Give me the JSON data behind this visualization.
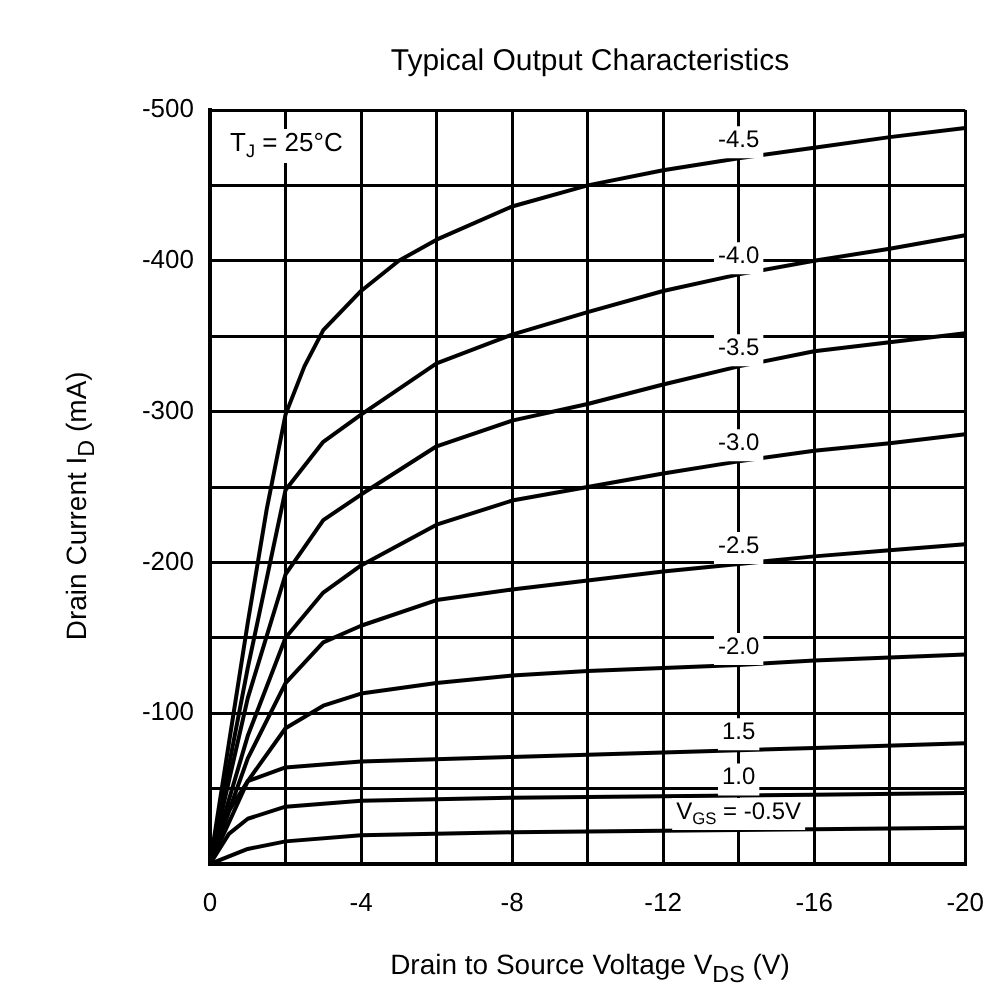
{
  "chart_data": {
    "type": "line",
    "title": "Typical Output Characteristics",
    "xlabel": "Drain to Source Voltage V$_{DS}$ (V)",
    "ylabel": "Drain Current I$_{D}$ (mA)",
    "annotations": [
      "T$_{J}$ = 25°C"
    ],
    "xlim": [
      0,
      -20
    ],
    "xticks": [
      0,
      {
        "value": -2,
        "label": null
      },
      -4,
      {
        "value": -6,
        "label": null
      },
      -8,
      {
        "value": -10,
        "label": null
      },
      -12,
      {
        "value": -14,
        "label": null
      },
      -16,
      {
        "value": -18,
        "label": null
      },
      -20
    ],
    "ylim": [
      0,
      -500
    ],
    "yticks": [
      {
        "value": 0,
        "label": null
      },
      {
        "value": -50,
        "label": null
      },
      -100,
      {
        "value": -150,
        "label": null
      },
      -200,
      {
        "value": -250,
        "label": null
      },
      -300,
      {
        "value": -350,
        "label": null
      },
      -400,
      {
        "value": -450,
        "label": null
      },
      -500
    ],
    "grid": true,
    "legend": false,
    "marker": "none",
    "line_style": "solid",
    "series": [
      {
        "name": "-4.5",
        "color": "#000000",
        "x": [
          0,
          -0.5,
          -1,
          -1.5,
          -2,
          -2.5,
          -3,
          -4,
          -5,
          -6,
          -8,
          -10,
          -12,
          -14,
          -16,
          -18,
          -20
        ],
        "values": [
          0,
          -80,
          -160,
          -235,
          -298,
          -330,
          -354,
          -380,
          -400,
          -414,
          -436,
          -450,
          -460,
          -468,
          -475,
          -482,
          -488
        ]
      },
      {
        "name": "-4.0",
        "color": "#000000",
        "x": [
          0,
          -1,
          -2,
          -3,
          -4,
          -6,
          -8,
          -10,
          -12,
          -14,
          -16,
          -18,
          -20
        ],
        "values": [
          0,
          -130,
          -248,
          -280,
          -298,
          -332,
          -351,
          -366,
          -380,
          -391,
          -400,
          -408,
          -417
        ]
      },
      {
        "name": "-3.5",
        "color": "#000000",
        "x": [
          0,
          -1,
          -2,
          -3,
          -4,
          -6,
          -8,
          -10,
          -12,
          -14,
          -16,
          -18,
          -20
        ],
        "values": [
          0,
          -110,
          -192,
          -228,
          -245,
          -277,
          -294,
          -305,
          -318,
          -330,
          -340,
          -346,
          -352
        ]
      },
      {
        "name": "-3.0",
        "color": "#000000",
        "x": [
          0,
          -1,
          -2,
          -3,
          -4,
          -6,
          -8,
          -10,
          -12,
          -14,
          -16,
          -18,
          -20
        ],
        "values": [
          0,
          -85,
          -150,
          -180,
          -198,
          -225,
          -241,
          -250,
          -259,
          -267,
          -274,
          -279,
          -285
        ]
      },
      {
        "name": "-2.5",
        "color": "#000000",
        "x": [
          0,
          -1,
          -2,
          -3,
          -4,
          -6,
          -8,
          -10,
          -12,
          -14,
          -16,
          -18,
          -20
        ],
        "values": [
          0,
          -70,
          -120,
          -147,
          -158,
          -175,
          -182,
          -188,
          -194,
          -199,
          -204,
          -208,
          -212
        ]
      },
      {
        "name": "-2.0",
        "color": "#000000",
        "x": [
          0,
          -1,
          -2,
          -3,
          -4,
          -6,
          -8,
          -10,
          -12,
          -14,
          -16,
          -18,
          -20
        ],
        "values": [
          0,
          -55,
          -90,
          -105,
          -113,
          -120,
          -125,
          -128,
          -130,
          -132,
          -135,
          -137,
          -139
        ]
      },
      {
        "name": "1.5",
        "color": "#000000",
        "x": [
          0,
          -0.5,
          -1,
          -2,
          -4,
          -8,
          -12,
          -16,
          -20
        ],
        "values": [
          0,
          -35,
          -55,
          -64,
          -68,
          -71,
          -74,
          -77,
          -80
        ]
      },
      {
        "name": "1.0",
        "color": "#000000",
        "x": [
          0,
          -0.5,
          -1,
          -2,
          -4,
          -8,
          -12,
          -16,
          -20
        ],
        "values": [
          0,
          -20,
          -30,
          -38,
          -42,
          -44,
          -45,
          -46,
          -47
        ]
      },
      {
        "name": "V$_{GS}$ = -0.5V",
        "color": "#000000",
        "x": [
          0,
          -1,
          -2,
          -4,
          -8,
          -12,
          -16,
          -20
        ],
        "values": [
          0,
          -10,
          -15,
          -19,
          -21,
          -22,
          -23,
          -24
        ]
      }
    ]
  }
}
